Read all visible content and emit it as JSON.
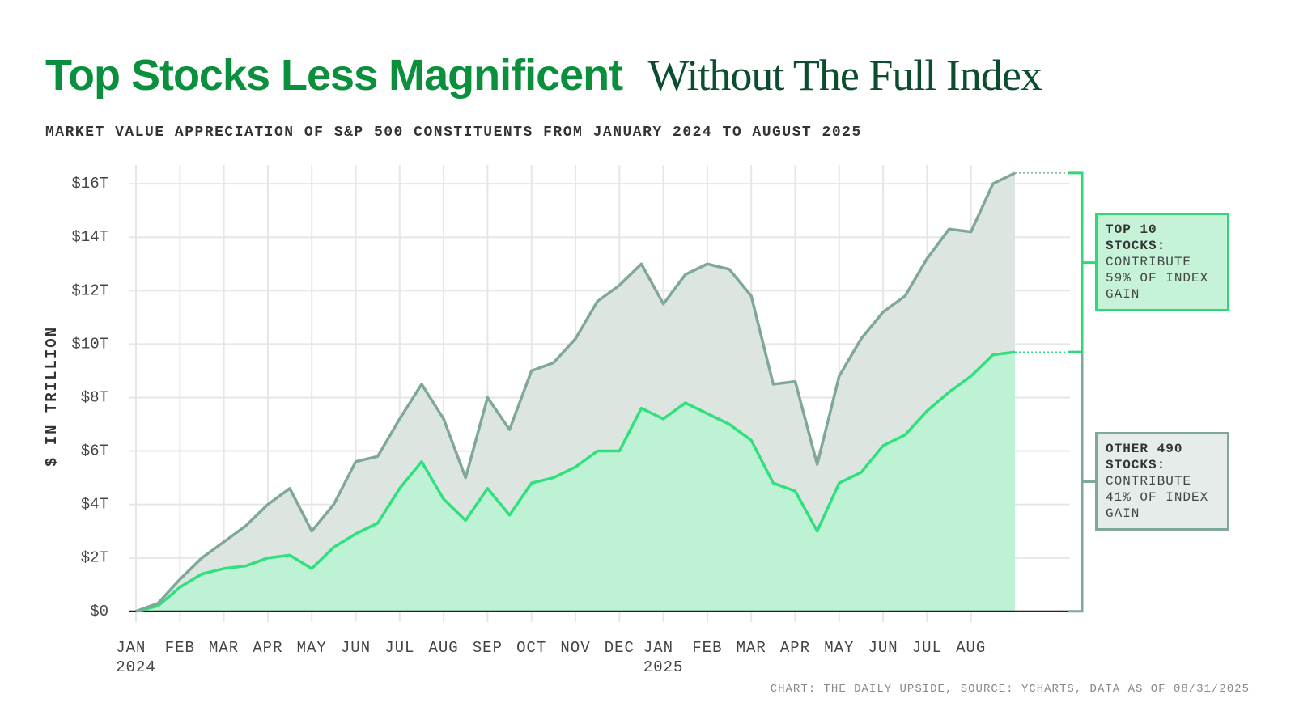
{
  "chart_data": {
    "type": "area",
    "stacked": true,
    "title": {
      "highlight": "Top Stocks Less Magnificent",
      "rest": "Without The Full Index"
    },
    "subtitle": "MARKET VALUE APPRECIATION OF S&P 500 CONSTITUENTS FROM JANUARY 2024 TO AUGUST 2025",
    "y_label": "$ IN TRILLION",
    "source": "CHART: THE DAILY UPSIDE, SOURCE: YCHARTS, DATA AS OF 08/31/2025",
    "categories": [
      "JAN\n2024",
      null,
      "FEB",
      null,
      "MAR",
      null,
      "APR",
      null,
      "MAY",
      null,
      "JUN",
      null,
      "JUL",
      null,
      "AUG",
      null,
      "SEP",
      null,
      "OCT",
      null,
      "NOV",
      null,
      "DEC",
      null,
      "JAN\n2025",
      null,
      "FEB",
      null,
      "MAR",
      null,
      "APR",
      null,
      "MAY",
      null,
      "JUN",
      null,
      "JUL",
      null,
      "AUG",
      null,
      null
    ],
    "series": [
      {
        "color": "#2fe07d",
        "fill": "#bdf3d4",
        "values": [
          0,
          0.2,
          0.9,
          1.4,
          1.6,
          1.7,
          2.0,
          2.1,
          1.6,
          2.4,
          2.9,
          3.3,
          4.6,
          5.6,
          4.2,
          3.4,
          4.6,
          3.6,
          4.8,
          5.0,
          5.4,
          6.0,
          6.0,
          7.6,
          7.2,
          7.8,
          7.4,
          7.0,
          6.4,
          4.8,
          4.5,
          3.0,
          4.8,
          5.2,
          6.2,
          6.6,
          7.5,
          8.2,
          8.8,
          9.6,
          9.7
        ]
      },
      {
        "color": "#7fa898",
        "fill": "#dde5e1",
        "values": [
          0,
          0.1,
          0.3,
          0.6,
          1.0,
          1.5,
          2.0,
          2.5,
          1.4,
          1.6,
          2.7,
          2.5,
          2.6,
          2.9,
          3.0,
          1.6,
          3.4,
          3.2,
          4.2,
          4.3,
          4.8,
          5.6,
          6.2,
          5.4,
          4.3,
          4.8,
          5.6,
          5.8,
          5.4,
          3.7,
          4.1,
          2.5,
          4.0,
          5.0,
          5.0,
          5.2,
          5.7,
          6.1,
          5.4,
          6.4,
          6.7
        ]
      }
    ],
    "ylim": [
      -0.4,
      16.7
    ],
    "yticks": [
      {
        "value": 0,
        "label": "$0"
      },
      {
        "value": 2,
        "label": "$2T"
      },
      {
        "value": 4,
        "label": "$4T"
      },
      {
        "value": 6,
        "label": "$6T"
      },
      {
        "value": 8,
        "label": "$8T"
      },
      {
        "value": 10,
        "label": "$10T"
      },
      {
        "value": 12,
        "label": "$12T"
      },
      {
        "value": 14,
        "label": "$14T"
      },
      {
        "value": 16,
        "label": "$16T"
      }
    ],
    "grid": true,
    "annotations": [
      {
        "title": "OTHER 490 STOCKS:",
        "text": "CONTRIBUTE 41% OF INDEX GAIN",
        "border": "#7fa898",
        "background": "#e6ece9"
      },
      {
        "title": "TOP 10 STOCKS:",
        "text": "CONTRIBUTE 59% OF INDEX GAIN",
        "border": "#2fd778",
        "background": "#c6f3d8"
      }
    ]
  }
}
